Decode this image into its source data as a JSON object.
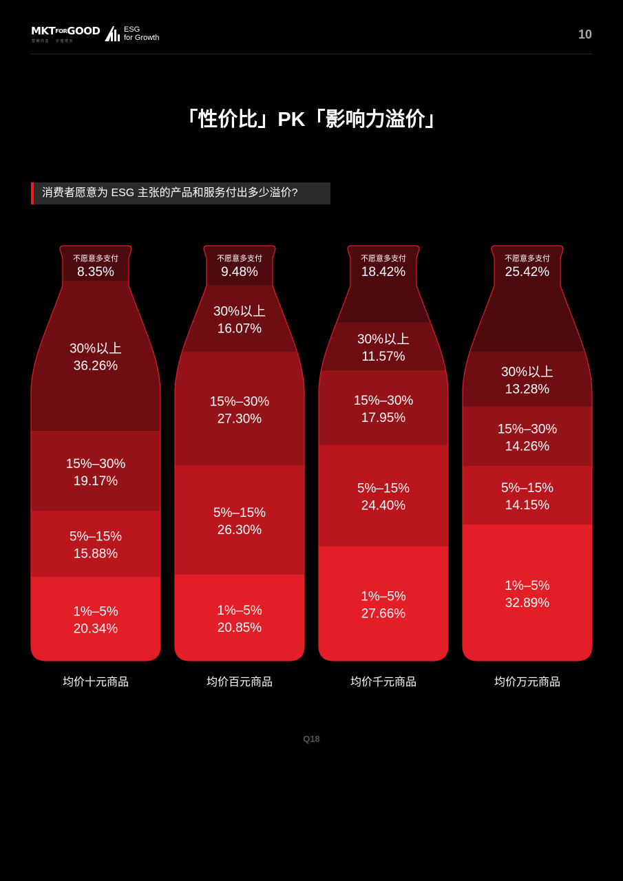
{
  "header": {
    "logo_text": "MKTFORGOOD",
    "logo_subtext": "营销向善 · 价值增长",
    "logo2_line1": "ESG",
    "logo2_line2": "for Growth",
    "page_number": "10"
  },
  "title": "「性价比」PK「影响力溢价」",
  "subtitle": "消费者愿意为 ESG 主张的产品和服务付出多少溢价?",
  "source": "Q18",
  "colors": {
    "unwilling": "#4e0b0f",
    "over30": "#6e0d12",
    "range15_30": "#961319",
    "range5_15": "#b9161d",
    "range1_5": "#e31e27",
    "outline": "#e31e25"
  },
  "chart_data": {
    "type": "bar",
    "stacked": true,
    "categories": [
      "均价十元商品",
      "均价百元商品",
      "均价千元商品",
      "均价万元商品"
    ],
    "series": [
      {
        "name": "1%–5%",
        "key": "range1_5",
        "values": [
          20.34,
          20.85,
          27.66,
          32.89
        ]
      },
      {
        "name": "5%–15%",
        "key": "range5_15",
        "values": [
          15.88,
          26.3,
          24.4,
          14.15
        ]
      },
      {
        "name": "15%–30%",
        "key": "range15_30",
        "values": [
          19.17,
          27.3,
          17.95,
          14.26
        ]
      },
      {
        "name": "30%以上",
        "key": "over30",
        "values": [
          36.26,
          16.07,
          11.57,
          13.28
        ]
      },
      {
        "name": "不愿意多支付",
        "key": "unwilling",
        "values": [
          8.35,
          9.48,
          18.42,
          25.42
        ]
      }
    ],
    "value_labels": [
      [
        "20.34%",
        "15.88%",
        "19.17%",
        "36.26%",
        "8.35%"
      ],
      [
        "20.85%",
        "26.30%",
        "27.30%",
        "16.07%",
        "9.48%"
      ],
      [
        "27.66%",
        "24.40%",
        "17.95%",
        "11.57%",
        "18.42%"
      ],
      [
        "32.89%",
        "14.15%",
        "14.26%",
        "13.28%",
        "25.42%"
      ]
    ],
    "ylim": [
      0,
      100
    ],
    "legend": "none"
  }
}
